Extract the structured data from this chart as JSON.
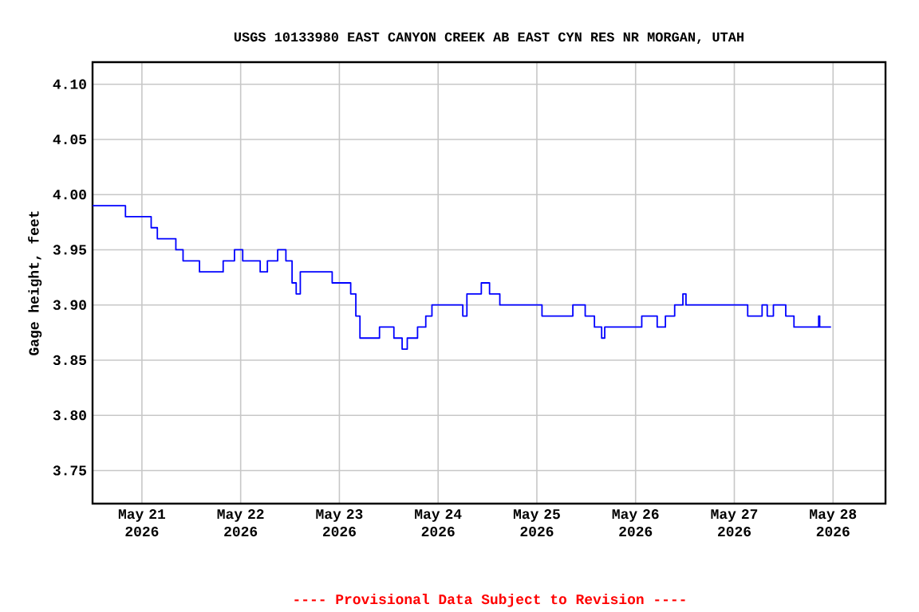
{
  "chart_data": {
    "type": "step",
    "title": "USGS 10133980 EAST CANYON CREEK AB EAST CYN RES NR MORGAN, UTAH",
    "ylabel": "Gage height, feet",
    "annotations": [
      "---- Provisional Data Subject to Revision ----"
    ],
    "x": [
      "2026-05-20T12:00",
      "2026-05-20T20:00",
      "2026-05-21T02:15",
      "2026-05-21T03:45",
      "2026-05-21T08:15",
      "2026-05-21T10:00",
      "2026-05-21T14:00",
      "2026-05-21T19:45",
      "2026-05-21T22:30",
      "2026-05-22T00:30",
      "2026-05-22T04:45",
      "2026-05-22T06:30",
      "2026-05-22T09:00",
      "2026-05-22T11:00",
      "2026-05-22T12:30",
      "2026-05-22T13:30",
      "2026-05-22T14:30",
      "2026-05-22T22:15",
      "2026-05-23T02:45",
      "2026-05-23T04:00",
      "2026-05-23T05:00",
      "2026-05-23T09:45",
      "2026-05-23T13:15",
      "2026-05-23T15:15",
      "2026-05-23T16:30",
      "2026-05-23T19:00",
      "2026-05-23T21:00",
      "2026-05-23T22:30",
      "2026-05-24T06:00",
      "2026-05-24T07:00",
      "2026-05-24T10:30",
      "2026-05-24T12:30",
      "2026-05-24T15:00",
      "2026-05-25T01:15",
      "2026-05-25T08:45",
      "2026-05-25T11:45",
      "2026-05-25T14:00",
      "2026-05-25T15:45",
      "2026-05-25T16:30",
      "2026-05-26T01:30",
      "2026-05-26T05:15",
      "2026-05-26T07:15",
      "2026-05-26T09:30",
      "2026-05-26T11:30",
      "2026-05-26T12:15",
      "2026-05-27T03:15",
      "2026-05-27T06:45",
      "2026-05-27T08:00",
      "2026-05-27T09:30",
      "2026-05-27T12:30",
      "2026-05-27T14:30",
      "2026-05-27T20:30",
      "2026-05-27T20:45",
      "2026-05-27T23:30"
    ],
    "series": [
      {
        "color": "#0000ff",
        "values": [
          3.99,
          3.98,
          3.97,
          3.96,
          3.95,
          3.94,
          3.93,
          3.94,
          3.95,
          3.94,
          3.93,
          3.94,
          3.95,
          3.94,
          3.92,
          3.91,
          3.93,
          3.92,
          3.91,
          3.89,
          3.87,
          3.88,
          3.87,
          3.86,
          3.87,
          3.88,
          3.89,
          3.9,
          3.89,
          3.91,
          3.92,
          3.91,
          3.9,
          3.89,
          3.9,
          3.89,
          3.88,
          3.87,
          3.88,
          3.89,
          3.88,
          3.89,
          3.9,
          3.91,
          3.9,
          3.89,
          3.9,
          3.89,
          3.9,
          3.89,
          3.88,
          3.89,
          3.88,
          3.88
        ]
      }
    ],
    "xlim": [
      "2026-05-20T12:00",
      "2026-05-28T12:45"
    ],
    "xticks": [
      {
        "value": "2026-05-21",
        "label": "May 21 2026"
      },
      {
        "value": "2026-05-22",
        "label": "May 22 2026"
      },
      {
        "value": "2026-05-23",
        "label": "May 23 2026"
      },
      {
        "value": "2026-05-24",
        "label": "May 24 2026"
      },
      {
        "value": "2026-05-25",
        "label": "May 25 2026"
      },
      {
        "value": "2026-05-26",
        "label": "May 26 2026"
      },
      {
        "value": "2026-05-27",
        "label": "May 27 2026"
      },
      {
        "value": "2026-05-28",
        "label": "May 28 2026"
      }
    ],
    "ylim": [
      3.72,
      4.12
    ],
    "yticks": [
      {
        "value": 4.1,
        "label": "4.10"
      },
      {
        "value": 4.05,
        "label": "4.05"
      },
      {
        "value": 4.0,
        "label": "4.00"
      },
      {
        "value": 3.95,
        "label": "3.95"
      },
      {
        "value": 3.9,
        "label": "3.90"
      },
      {
        "value": 3.85,
        "label": "3.85"
      },
      {
        "value": 3.8,
        "label": "3.80"
      },
      {
        "value": 3.75,
        "label": "3.75"
      }
    ],
    "grid": true
  }
}
